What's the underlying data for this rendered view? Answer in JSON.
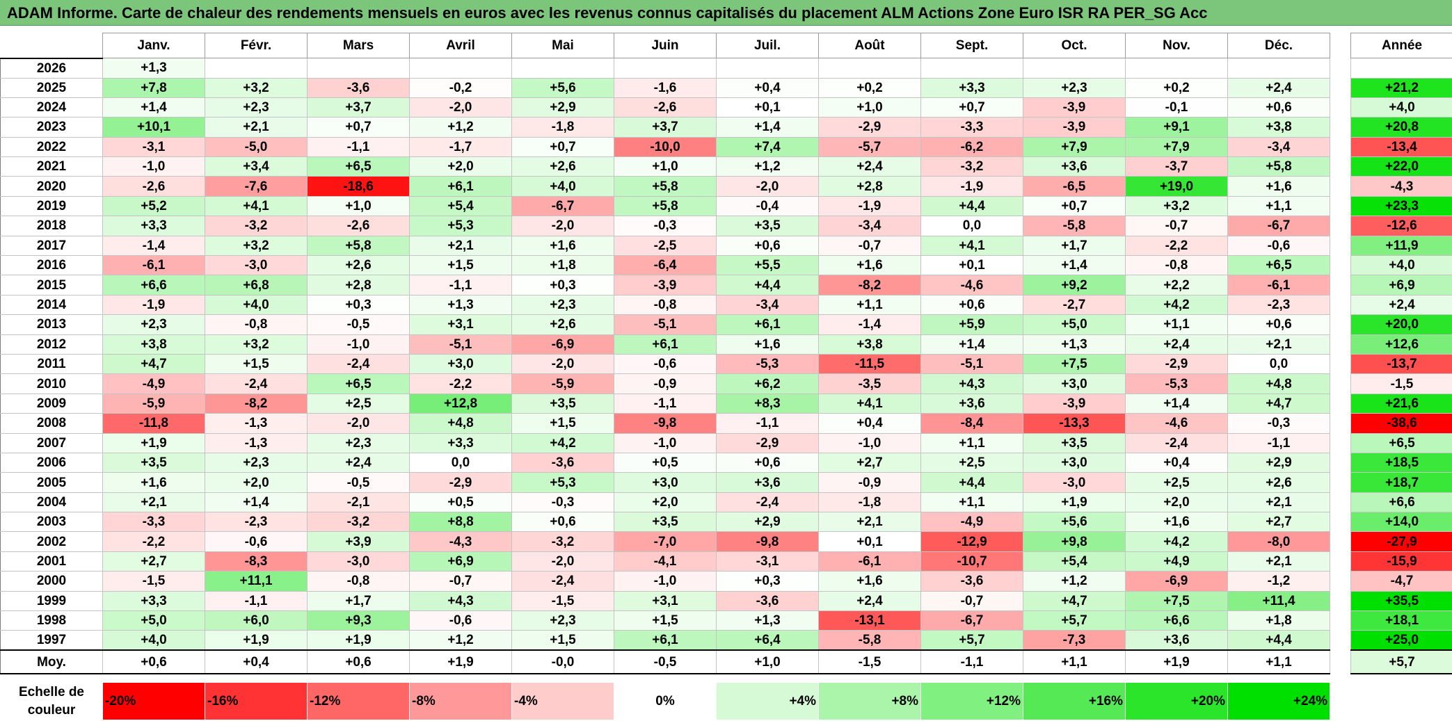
{
  "title": "ADAM Informe. Carte de chaleur des rendements mensuels en euros avec les revenus connus capitalisés du placement ALM Actions Zone Euro ISR RA PER_SG Acc",
  "chart_data": {
    "type": "heatmap",
    "title": "ADAM Informe. Carte de chaleur des rendements mensuels en euros avec les revenus connus capitalisés du placement ALM Actions Zone Euro ISR RA PER_SG Acc",
    "columns": [
      "Janv.",
      "Févr.",
      "Mars",
      "Avril",
      "Mai",
      "Juin",
      "Juil.",
      "Août",
      "Sept.",
      "Oct.",
      "Nov.",
      "Déc."
    ],
    "year_header": "Année",
    "rows": [
      {
        "year": "2026",
        "months": [
          "+1,3",
          "",
          "",
          "",
          "",
          "",
          "",
          "",
          "",
          "",
          "",
          ""
        ],
        "annual": ""
      },
      {
        "year": "2025",
        "months": [
          "+7,8",
          "+3,2",
          "-3,6",
          "-0,2",
          "+5,6",
          "-1,6",
          "+0,4",
          "+0,2",
          "+3,3",
          "+2,3",
          "+0,2",
          "+2,4"
        ],
        "annual": "+21,2"
      },
      {
        "year": "2024",
        "months": [
          "+1,4",
          "+2,3",
          "+3,7",
          "-2,0",
          "+2,9",
          "-2,6",
          "+0,1",
          "+1,0",
          "+0,7",
          "-3,9",
          "-0,1",
          "+0,6"
        ],
        "annual": "+4,0"
      },
      {
        "year": "2023",
        "months": [
          "+10,1",
          "+2,1",
          "+0,7",
          "+1,2",
          "-1,8",
          "+3,7",
          "+1,4",
          "-2,9",
          "-3,3",
          "-3,9",
          "+9,1",
          "+3,8"
        ],
        "annual": "+20,8"
      },
      {
        "year": "2022",
        "months": [
          "-3,1",
          "-5,0",
          "-1,1",
          "-1,7",
          "+0,7",
          "-10,0",
          "+7,4",
          "-5,7",
          "-6,2",
          "+7,9",
          "+7,9",
          "-3,4"
        ],
        "annual": "-13,4"
      },
      {
        "year": "2021",
        "months": [
          "-1,0",
          "+3,4",
          "+6,5",
          "+2,0",
          "+2,6",
          "+1,0",
          "+1,2",
          "+2,4",
          "-3,2",
          "+3,6",
          "-3,7",
          "+5,8"
        ],
        "annual": "+22,0"
      },
      {
        "year": "2020",
        "months": [
          "-2,6",
          "-7,6",
          "-18,6",
          "+6,1",
          "+4,0",
          "+5,8",
          "-2,0",
          "+2,8",
          "-1,9",
          "-6,5",
          "+19,0",
          "+1,6"
        ],
        "annual": "-4,3"
      },
      {
        "year": "2019",
        "months": [
          "+5,2",
          "+4,1",
          "+1,0",
          "+5,4",
          "-6,7",
          "+5,8",
          "-0,4",
          "-1,9",
          "+4,4",
          "+0,7",
          "+3,2",
          "+1,1"
        ],
        "annual": "+23,3"
      },
      {
        "year": "2018",
        "months": [
          "+3,3",
          "-3,2",
          "-2,6",
          "+5,3",
          "-2,0",
          "-0,3",
          "+3,5",
          "-3,4",
          "0,0",
          "-5,8",
          "-0,7",
          "-6,7"
        ],
        "annual": "-12,6"
      },
      {
        "year": "2017",
        "months": [
          "-1,4",
          "+3,2",
          "+5,8",
          "+2,1",
          "+1,6",
          "-2,5",
          "+0,6",
          "-0,7",
          "+4,1",
          "+1,7",
          "-2,2",
          "-0,6"
        ],
        "annual": "+11,9"
      },
      {
        "year": "2016",
        "months": [
          "-6,1",
          "-3,0",
          "+2,6",
          "+1,5",
          "+1,8",
          "-6,4",
          "+5,5",
          "+1,6",
          "+0,1",
          "+1,4",
          "-0,8",
          "+6,5"
        ],
        "annual": "+4,0"
      },
      {
        "year": "2015",
        "months": [
          "+6,6",
          "+6,8",
          "+2,8",
          "-1,1",
          "+0,3",
          "-3,9",
          "+4,4",
          "-8,2",
          "-4,6",
          "+9,2",
          "+2,2",
          "-6,1"
        ],
        "annual": "+6,9"
      },
      {
        "year": "2014",
        "months": [
          "-1,9",
          "+4,0",
          "+0,3",
          "+1,3",
          "+2,3",
          "-0,8",
          "-3,4",
          "+1,1",
          "+0,6",
          "-2,7",
          "+4,2",
          "-2,3"
        ],
        "annual": "+2,4"
      },
      {
        "year": "2013",
        "months": [
          "+2,3",
          "-0,8",
          "-0,5",
          "+3,1",
          "+2,6",
          "-5,1",
          "+6,1",
          "-1,4",
          "+5,9",
          "+5,0",
          "+1,1",
          "+0,6"
        ],
        "annual": "+20,0"
      },
      {
        "year": "2012",
        "months": [
          "+3,8",
          "+3,2",
          "-1,0",
          "-5,1",
          "-6,9",
          "+6,1",
          "+1,6",
          "+3,8",
          "+1,4",
          "+1,3",
          "+2,4",
          "+2,1"
        ],
        "annual": "+12,6"
      },
      {
        "year": "2011",
        "months": [
          "+4,7",
          "+1,5",
          "-2,4",
          "+3,0",
          "-2,0",
          "-0,6",
          "-5,3",
          "-11,5",
          "-5,1",
          "+7,5",
          "-2,9",
          "0,0"
        ],
        "annual": "-13,7"
      },
      {
        "year": "2010",
        "months": [
          "-4,9",
          "-2,4",
          "+6,5",
          "-2,2",
          "-5,9",
          "-0,9",
          "+6,2",
          "-3,5",
          "+4,3",
          "+3,0",
          "-5,3",
          "+4,8"
        ],
        "annual": "-1,5"
      },
      {
        "year": "2009",
        "months": [
          "-5,9",
          "-8,2",
          "+2,5",
          "+12,8",
          "+3,5",
          "-1,1",
          "+8,3",
          "+4,1",
          "+3,6",
          "-3,9",
          "+1,4",
          "+4,7"
        ],
        "annual": "+21,6"
      },
      {
        "year": "2008",
        "months": [
          "-11,8",
          "-1,3",
          "-2,0",
          "+4,8",
          "+1,5",
          "-9,8",
          "-1,1",
          "+0,4",
          "-8,4",
          "-13,3",
          "-4,6",
          "-0,3"
        ],
        "annual": "-38,6"
      },
      {
        "year": "2007",
        "months": [
          "+1,9",
          "-1,3",
          "+2,3",
          "+3,3",
          "+4,2",
          "-1,0",
          "-2,9",
          "-1,0",
          "+1,1",
          "+3,5",
          "-2,4",
          "-1,1"
        ],
        "annual": "+6,5"
      },
      {
        "year": "2006",
        "months": [
          "+3,5",
          "+2,3",
          "+2,4",
          "0,0",
          "-3,6",
          "+0,5",
          "+0,6",
          "+2,7",
          "+2,5",
          "+3,0",
          "+0,4",
          "+2,9"
        ],
        "annual": "+18,5"
      },
      {
        "year": "2005",
        "months": [
          "+1,6",
          "+2,0",
          "-0,5",
          "-2,9",
          "+5,3",
          "+3,0",
          "+3,6",
          "-0,9",
          "+4,4",
          "-3,0",
          "+2,5",
          "+2,6"
        ],
        "annual": "+18,7"
      },
      {
        "year": "2004",
        "months": [
          "+2,1",
          "+1,4",
          "-2,1",
          "+0,5",
          "-0,3",
          "+2,0",
          "-2,4",
          "-1,8",
          "+1,1",
          "+1,9",
          "+2,0",
          "+2,1"
        ],
        "annual": "+6,6"
      },
      {
        "year": "2003",
        "months": [
          "-3,3",
          "-2,3",
          "-3,2",
          "+8,8",
          "+0,6",
          "+3,5",
          "+2,9",
          "+2,1",
          "-4,9",
          "+5,6",
          "+1,6",
          "+2,7"
        ],
        "annual": "+14,0"
      },
      {
        "year": "2002",
        "months": [
          "-2,2",
          "-0,6",
          "+3,9",
          "-4,3",
          "-3,2",
          "-7,0",
          "-9,8",
          "+0,1",
          "-12,9",
          "+9,8",
          "+4,2",
          "-8,0"
        ],
        "annual": "-27,9"
      },
      {
        "year": "2001",
        "months": [
          "+2,7",
          "-8,3",
          "-3,0",
          "+6,9",
          "-2,0",
          "-4,1",
          "-3,1",
          "-6,1",
          "-10,7",
          "+5,4",
          "+4,9",
          "+2,1"
        ],
        "annual": "-15,9"
      },
      {
        "year": "2000",
        "months": [
          "-1,5",
          "+11,1",
          "-0,8",
          "-0,7",
          "-2,4",
          "-1,0",
          "+0,3",
          "+1,6",
          "-3,6",
          "+1,2",
          "-6,9",
          "-1,2"
        ],
        "annual": "-4,7"
      },
      {
        "year": "1999",
        "months": [
          "+3,3",
          "-1,1",
          "+1,7",
          "+4,3",
          "-1,5",
          "+3,1",
          "-3,6",
          "+2,4",
          "-0,7",
          "+4,7",
          "+7,5",
          "+11,4"
        ],
        "annual": "+35,5"
      },
      {
        "year": "1998",
        "months": [
          "+5,0",
          "+6,0",
          "+9,3",
          "-0,6",
          "+2,3",
          "+1,5",
          "+1,3",
          "-13,1",
          "-6,7",
          "+5,7",
          "+6,6",
          "+1,8"
        ],
        "annual": "+18,1"
      },
      {
        "year": "1997",
        "months": [
          "+4,0",
          "+1,9",
          "+1,9",
          "+1,2",
          "+1,5",
          "+6,1",
          "+6,4",
          "-5,8",
          "+5,7",
          "-7,3",
          "+3,6",
          "+4,4"
        ],
        "annual": "+25,0"
      }
    ],
    "average": {
      "label": "Moy.",
      "months": [
        "+0,6",
        "+0,4",
        "+0,6",
        "+1,9",
        "-0,0",
        "-0,5",
        "+1,0",
        "-1,5",
        "-1,1",
        "+1,1",
        "+1,9",
        "+1,1"
      ],
      "annual": "+5,7"
    },
    "scale": {
      "label": "Echelle de couleur",
      "steps": [
        "-20%",
        "-16%",
        "-12%",
        "-8%",
        "-4%",
        "0%",
        "+4%",
        "+8%",
        "+12%",
        "+16%",
        "+20%",
        "+24%"
      ],
      "values": [
        -20,
        -16,
        -12,
        -8,
        -4,
        0,
        4,
        8,
        12,
        16,
        20,
        24
      ]
    },
    "colors": {
      "negative_max": "#ff0000",
      "neutral": "#ffffff",
      "positive_max": "#00e000",
      "title_bg": "#7bc67a"
    },
    "color_range": {
      "min": -20,
      "max": 24
    }
  }
}
